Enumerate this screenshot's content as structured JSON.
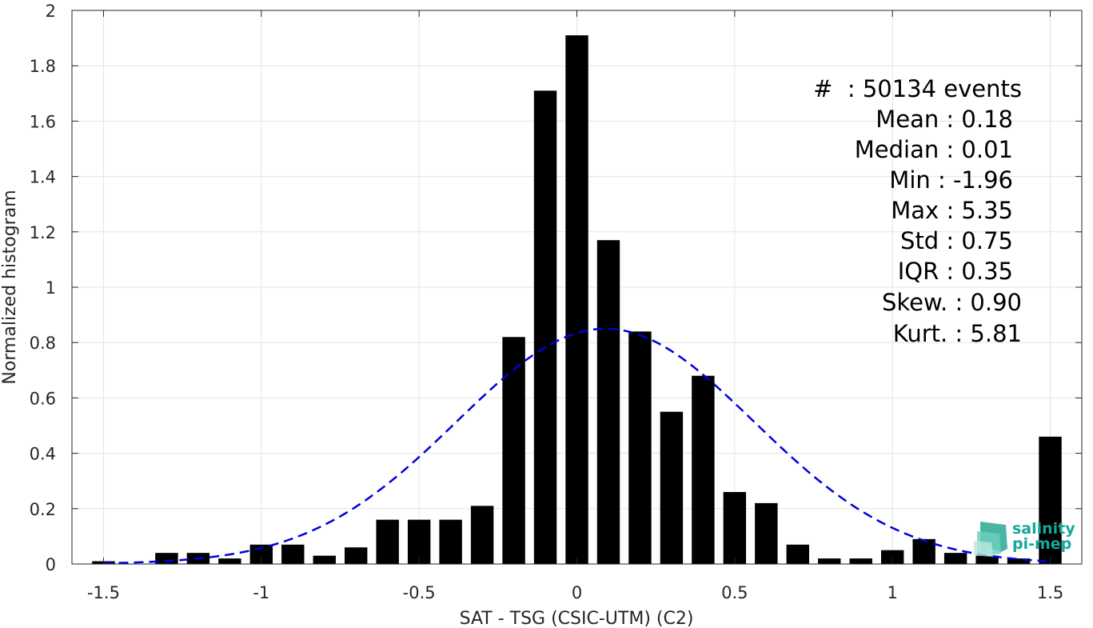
{
  "chart_data": {
    "type": "bar",
    "xlabel": "SAT - TSG (CSIC-UTM) (C2)",
    "ylabel": "Normalized histogram",
    "xlim": [
      -1.6,
      1.6
    ],
    "ylim": [
      0,
      2
    ],
    "xticks": [
      -1.5,
      -1,
      -0.5,
      0,
      0.5,
      1,
      1.5
    ],
    "xtick_labels": [
      "-1.5",
      "-1",
      "-0.5",
      "0",
      "0.5",
      "1",
      "1.5"
    ],
    "yticks": [
      0,
      0.2,
      0.4,
      0.6,
      0.8,
      1,
      1.2,
      1.4,
      1.6,
      1.8,
      2
    ],
    "ytick_labels": [
      "0",
      "0.2",
      "0.4",
      "0.6",
      "0.8",
      "1",
      "1.2",
      "1.4",
      "1.6",
      "1.8",
      "2"
    ],
    "grid": true,
    "bar_color": "#000000",
    "bin_width": 0.1,
    "bars": [
      {
        "x": -1.5,
        "y": 0.01
      },
      {
        "x": -1.3,
        "y": 0.04
      },
      {
        "x": -1.2,
        "y": 0.04
      },
      {
        "x": -1.1,
        "y": 0.02
      },
      {
        "x": -1.0,
        "y": 0.07
      },
      {
        "x": -0.9,
        "y": 0.07
      },
      {
        "x": -0.8,
        "y": 0.03
      },
      {
        "x": -0.7,
        "y": 0.06
      },
      {
        "x": -0.6,
        "y": 0.16
      },
      {
        "x": -0.5,
        "y": 0.16
      },
      {
        "x": -0.4,
        "y": 0.16
      },
      {
        "x": -0.3,
        "y": 0.21
      },
      {
        "x": -0.2,
        "y": 0.82
      },
      {
        "x": -0.1,
        "y": 1.71
      },
      {
        "x": 0.0,
        "y": 1.91
      },
      {
        "x": 0.1,
        "y": 1.17
      },
      {
        "x": 0.2,
        "y": 0.84
      },
      {
        "x": 0.3,
        "y": 0.55
      },
      {
        "x": 0.4,
        "y": 0.68
      },
      {
        "x": 0.5,
        "y": 0.26
      },
      {
        "x": 0.6,
        "y": 0.22
      },
      {
        "x": 0.7,
        "y": 0.07
      },
      {
        "x": 0.8,
        "y": 0.02
      },
      {
        "x": 0.9,
        "y": 0.02
      },
      {
        "x": 1.0,
        "y": 0.05
      },
      {
        "x": 1.1,
        "y": 0.09
      },
      {
        "x": 1.2,
        "y": 0.04
      },
      {
        "x": 1.3,
        "y": 0.03
      },
      {
        "x": 1.4,
        "y": 0.02
      },
      {
        "x": 1.5,
        "y": 0.46
      }
    ],
    "fit_curve": {
      "type": "gaussian",
      "mean": 0.09,
      "std": 0.47,
      "peak": 0.85,
      "color": "#0000dd",
      "style": "dashed",
      "x_range": [
        -1.5,
        1.5
      ]
    },
    "stats_lines": [
      "#  : 50134 events",
      "Mean : 0.18",
      "Median : 0.01",
      "Min : -1.96",
      "Max : 5.35",
      "Std : 0.75",
      "IQR : 0.35",
      "Skew. : 0.90",
      "Kurt. : 5.81"
    ]
  },
  "logo": {
    "line1": "salinity",
    "line2": "pi-mep",
    "color": "#16a79a"
  }
}
